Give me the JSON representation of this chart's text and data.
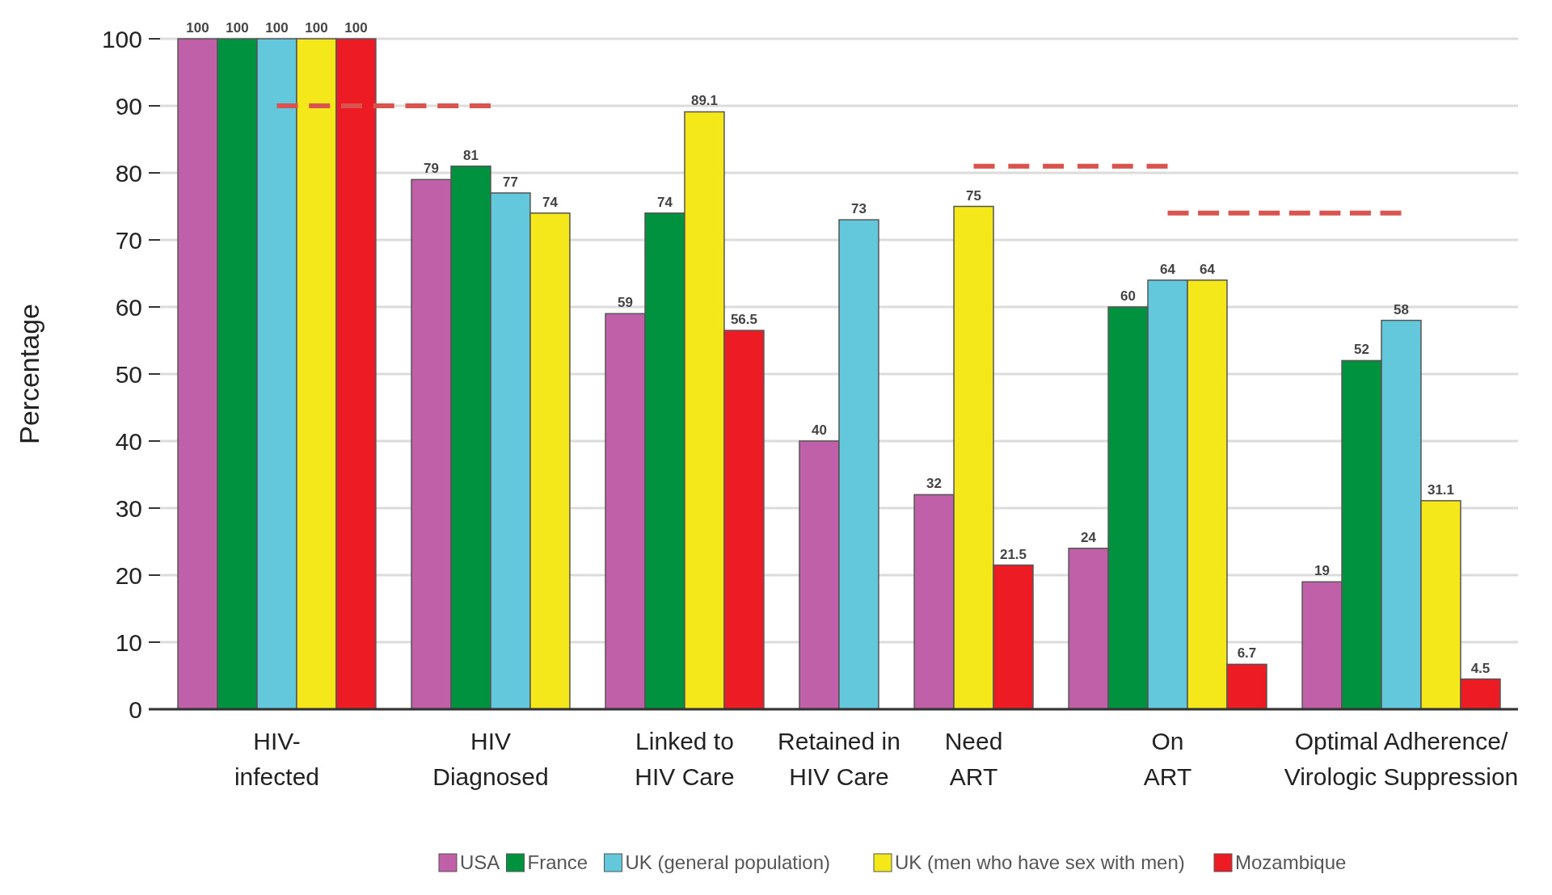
{
  "chart_data": {
    "type": "bar",
    "ylabel": "Percentage",
    "categories": [
      "HIV-infected",
      "HIV Diagnosed",
      "Linked to HIV Care",
      "Retained in HIV Care",
      "Need ART",
      "On ART",
      "Optimal Adherence/Virologic Suppression"
    ],
    "series": [
      {
        "name": "USA",
        "color": "#c060a8",
        "values": [
          100,
          79,
          59,
          40,
          32,
          24,
          19
        ],
        "value_labels": [
          "100",
          "79",
          "59",
          "40",
          "32",
          "24",
          "19"
        ]
      },
      {
        "name": "France",
        "color": "#00923f",
        "values": [
          100,
          81,
          74,
          null,
          null,
          60,
          52
        ],
        "value_labels": [
          "100",
          "81",
          "74",
          null,
          null,
          "60",
          "52"
        ]
      },
      {
        "name": "UK (general population)",
        "color": "#63c8dc",
        "values": [
          100,
          77,
          null,
          73,
          null,
          64,
          58
        ],
        "value_labels": [
          "100",
          "77",
          null,
          "73",
          null,
          "64",
          "58"
        ]
      },
      {
        "name": "UK (men who have sex with men)",
        "color": "#f5e81a",
        "values": [
          100,
          74,
          89.1,
          null,
          75,
          64,
          31.1
        ],
        "value_labels": [
          "100",
          "74",
          "89.1",
          null,
          "75",
          "64",
          "31.1"
        ]
      },
      {
        "name": "Mozambique",
        "color": "#ed1c24",
        "values": [
          100,
          null,
          56.5,
          null,
          21.5,
          6.7,
          4.5
        ],
        "value_labels": [
          "100",
          null,
          "56.5",
          null,
          "21.5",
          "6.7",
          "4.5"
        ]
      },
      {
        "type": "line",
        "color": "#d9534f",
        "line_style": "dashed",
        "values": [
          90,
          90,
          null,
          null,
          null,
          null,
          null
        ]
      },
      {
        "type": "line",
        "color": "#d9534f",
        "line_style": "dashed",
        "values": [
          null,
          null,
          null,
          null,
          81,
          81,
          null
        ]
      },
      {
        "type": "line",
        "color": "#d9534f",
        "line_style": "dashed",
        "values": [
          null,
          null,
          null,
          null,
          null,
          74,
          74
        ]
      }
    ],
    "ylim": [
      0,
      100
    ],
    "yticks": [
      0,
      10,
      20,
      30,
      40,
      50,
      60,
      70,
      80,
      90,
      100
    ],
    "grid": "y",
    "legend": "bottom"
  }
}
